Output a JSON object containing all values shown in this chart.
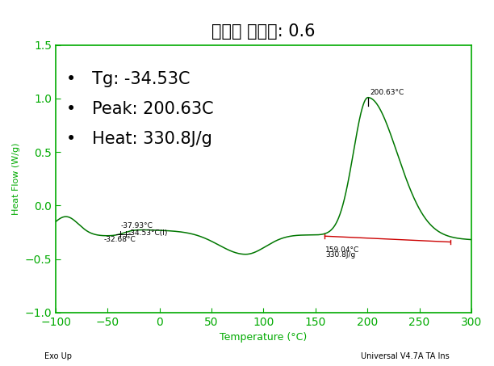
{
  "title": "경화제 당량비: 0.6",
  "xlabel": "Temperature (°C)",
  "ylabel": "Heat Flow (W/g)",
  "xlim": [
    -100,
    300
  ],
  "ylim": [
    -1.0,
    1.5
  ],
  "xticks": [
    -100,
    -50,
    0,
    50,
    100,
    150,
    200,
    250,
    300
  ],
  "yticks": [
    -1.0,
    -0.5,
    0.0,
    0.5,
    1.0,
    1.5
  ],
  "bg_color": "#ffffff",
  "axis_color": "#00aa00",
  "curve_color": "#007700",
  "baseline_color": "#cc0000",
  "tg_text": "Tg: -34.53C",
  "peak_text": "Peak: 200.63C",
  "heat_text": "Heat: 330.8J/g",
  "label_tg": "-34.53°C(I)",
  "label_37": "-37.93°C",
  "label_32": "-32.68°C",
  "label_peak": "200.63°C",
  "label_onset1": "159.04°C",
  "label_onset2": "330.8J/g",
  "footer_left": "Exo Up",
  "footer_right": "Universal V4.7A TA Ins",
  "title_fontsize": 15,
  "info_fontsize": 15,
  "annot_fontsize": 6.5
}
